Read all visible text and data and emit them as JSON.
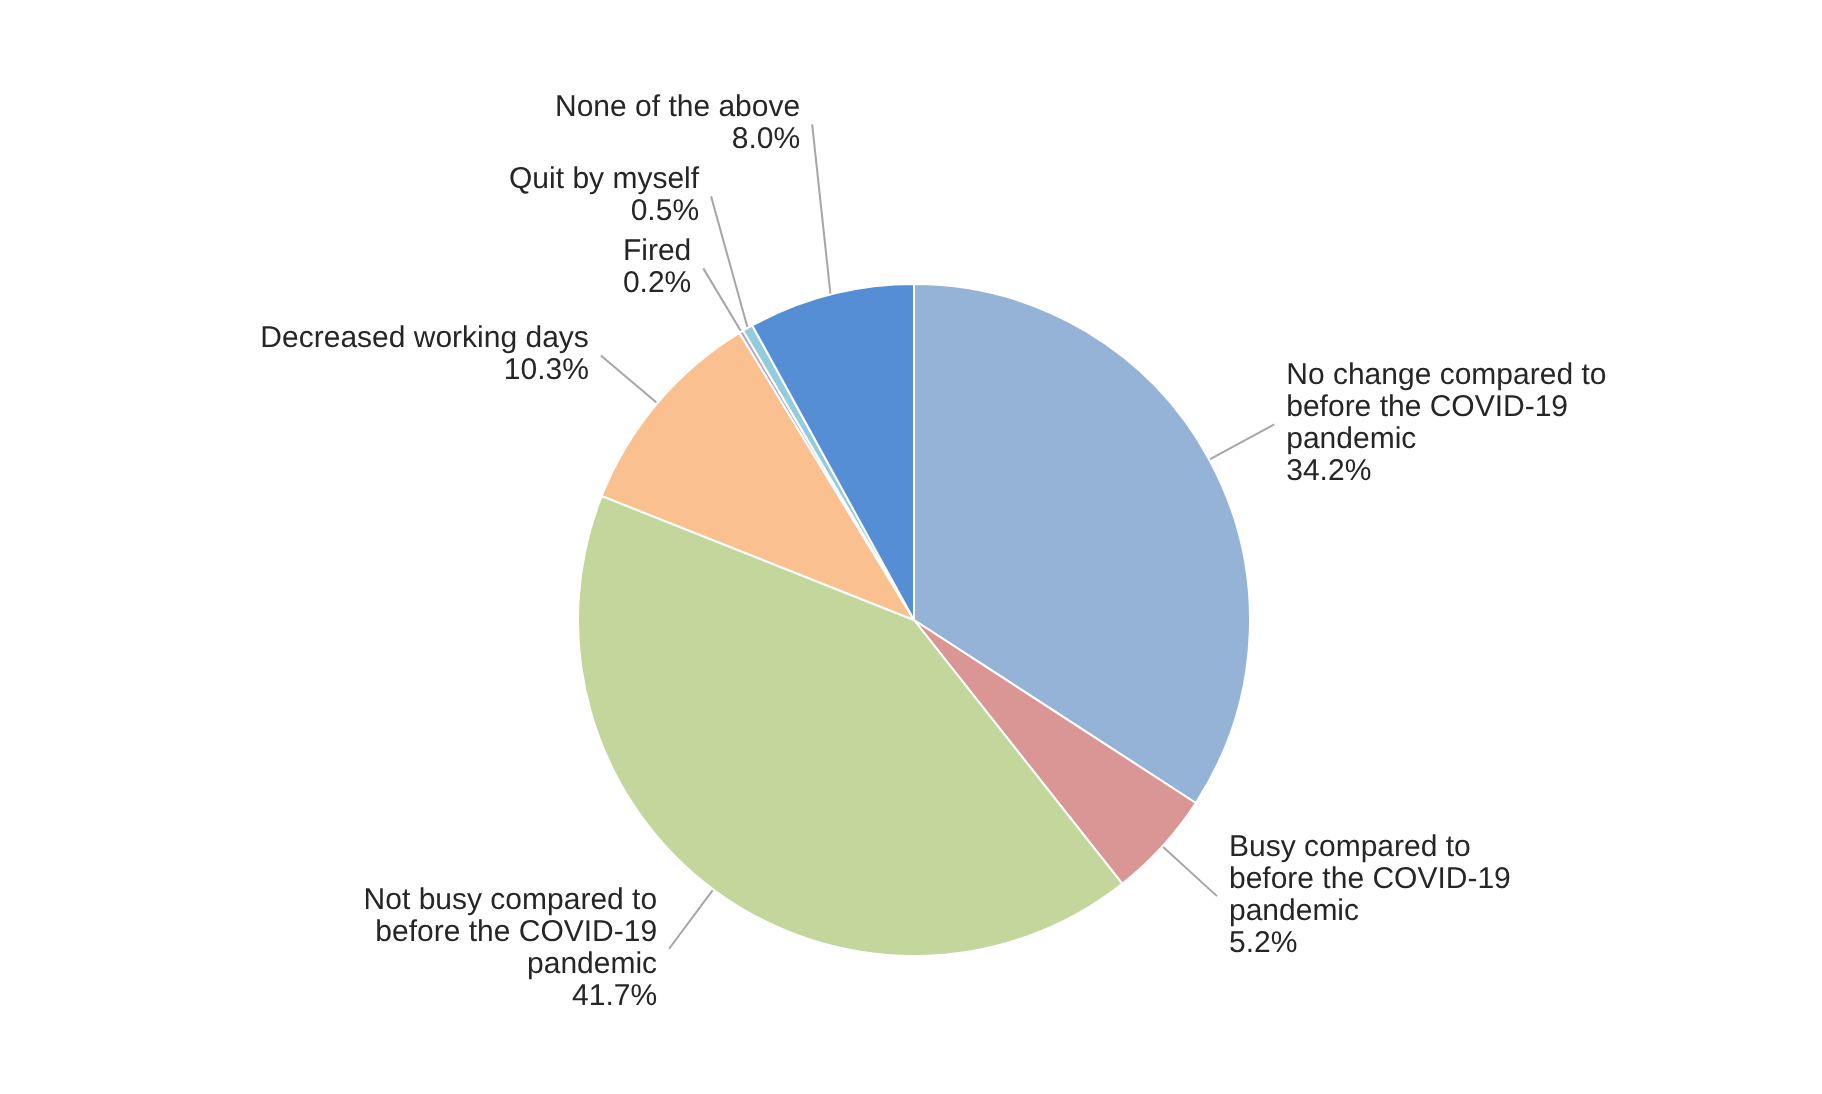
{
  "chart_data": {
    "type": "pie",
    "categories": [
      "No change compared to before the COVID-19 pandemic",
      "Busy compared to before the COVID-19 pandemic",
      "Not busy compared to before the COVID-19 pandemic",
      "Decreased working days",
      "Fired",
      "Quit by myself",
      "None of the above"
    ],
    "values": [
      34.2,
      5.2,
      41.7,
      10.3,
      0.2,
      0.5,
      8.0
    ],
    "colors": [
      "#95b3d7",
      "#d99694",
      "#c3d69b",
      "#fac090",
      "#b3a2c7",
      "#93cddd",
      "#558ed5"
    ],
    "value_labels": [
      "34.2%",
      "5.2%",
      "41.7%",
      "10.3%",
      "0.2%",
      "0.5%",
      "8.0%"
    ]
  }
}
